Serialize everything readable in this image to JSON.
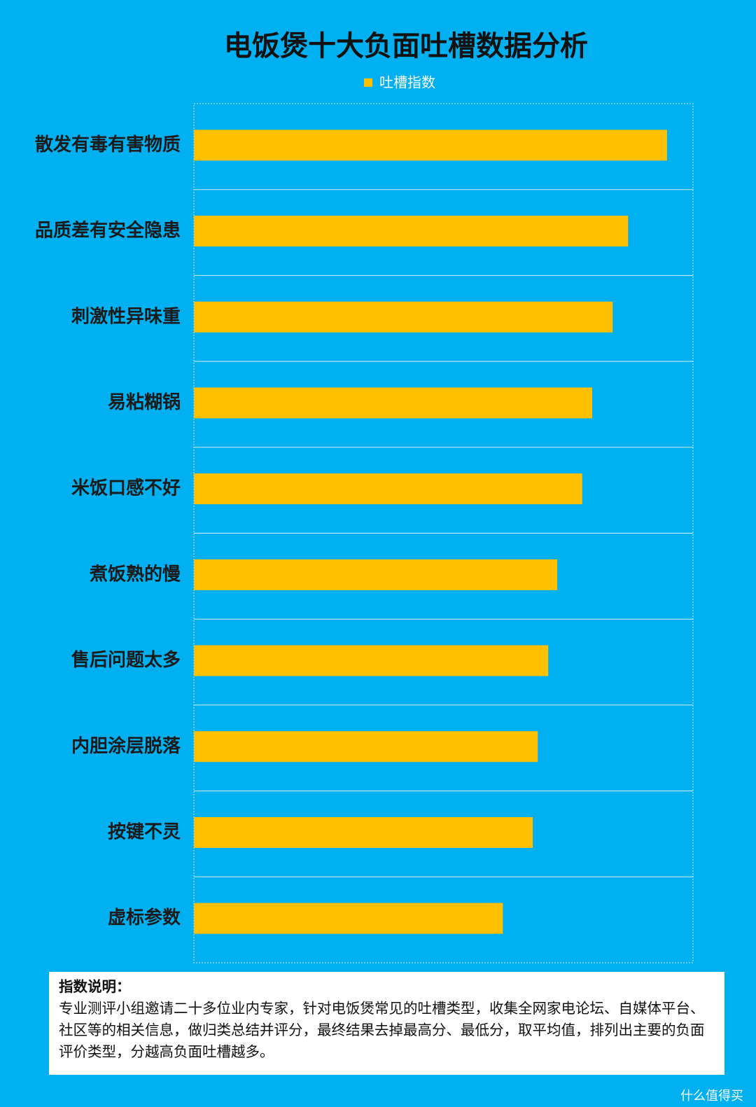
{
  "chart_data": {
    "type": "bar",
    "orientation": "horizontal",
    "title": "电饭煲十大负面吐槽数据分析",
    "categories": [
      "散发有毒有害物质",
      "品质差有安全隐患",
      "刺激性异味重",
      "易粘糊锅",
      "米饭口感不好",
      "煮饭熟的慢",
      "售后问题太多",
      "内胆涂层脱落",
      "按键不灵",
      "虚标参数"
    ],
    "series": [
      {
        "name": "吐槽指数",
        "color": "#ffc000",
        "values": [
          94.8,
          87.0,
          83.9,
          79.8,
          77.8,
          72.8,
          71.0,
          68.9,
          67.9,
          61.9
        ]
      }
    ],
    "xlim": [
      0,
      100
    ]
  },
  "note": {
    "title": "指数说明：",
    "text": "专业测评小组邀请二十多位业内专家，针对电饭煲常见的吐槽类型，收集全网家电论坛、自媒体平台、社区等的相关信息，做归类总结并评分，最终结果去掉最高分、最低分，取平均值，排列出主要的负面评价类型，分越高负面吐槽越多。"
  },
  "watermark": "什么值得买"
}
